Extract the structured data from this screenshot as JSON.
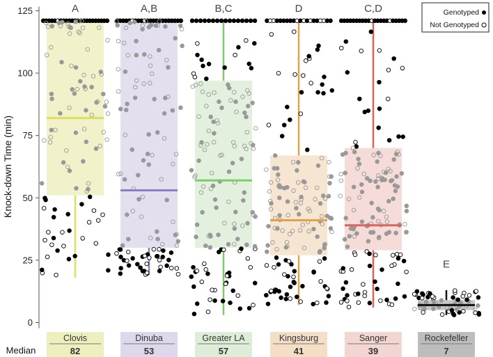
{
  "chart_data": {
    "type": "box-strip",
    "ylabel": "Knock-down Time (min)",
    "ylim": [
      0,
      125
    ],
    "yticks": [
      0,
      25,
      50,
      75,
      100,
      125
    ],
    "median_label": "Median",
    "legend": [
      {
        "label": "Genotyped",
        "marker": "filled"
      },
      {
        "label": "Not Genotyped",
        "marker": "open"
      }
    ],
    "groups": [
      {
        "name": "Clovis",
        "letter": "A",
        "median": 82,
        "q1": 51,
        "q3": 121,
        "whisker_low": 18,
        "whisker_high": 121,
        "color": "#ecedb8",
        "line_color": "#dede62",
        "n_ceiling": 23,
        "n_pts": 100,
        "seed": 11
      },
      {
        "name": "Dinuba",
        "letter": "A,B",
        "median": 53,
        "q1": 30,
        "q3": 121,
        "whisker_low": 19,
        "whisker_high": 121,
        "color": "#d9d4ea",
        "line_color": "#8a7fc1",
        "n_ceiling": 22,
        "n_pts": 120,
        "seed": 23
      },
      {
        "name": "Greater LA",
        "letter": "B,C",
        "median": 57,
        "q1": 30,
        "q3": 97,
        "whisker_low": 3,
        "whisker_high": 121,
        "color": "#d9ebd3",
        "line_color": "#7ccc6a",
        "n_ceiling": 16,
        "n_pts": 140,
        "seed": 37
      },
      {
        "name": "Kingsburg",
        "letter": "D",
        "median": 41,
        "q1": 27,
        "q3": 67,
        "whisker_low": 7,
        "whisker_high": 121,
        "color": "#f3dcc0",
        "line_color": "#e1a24a",
        "n_ceiling": 20,
        "n_pts": 150,
        "seed": 41
      },
      {
        "name": "Sanger",
        "letter": "C,D",
        "median": 39,
        "q1": 29,
        "q3": 70,
        "whisker_low": 6,
        "whisker_high": 121,
        "color": "#f2d0cc",
        "line_color": "#d9645a",
        "n_ceiling": 22,
        "n_pts": 150,
        "seed": 53
      },
      {
        "name": "Rockefeller",
        "letter": "E",
        "median": 7,
        "q1": 5,
        "q3": 9,
        "whisker_low": 3,
        "whisker_high": 13,
        "color": "#bdbdbd",
        "line_color": "#111111",
        "n_ceiling": 0,
        "n_pts": 60,
        "seed": 67
      }
    ]
  }
}
